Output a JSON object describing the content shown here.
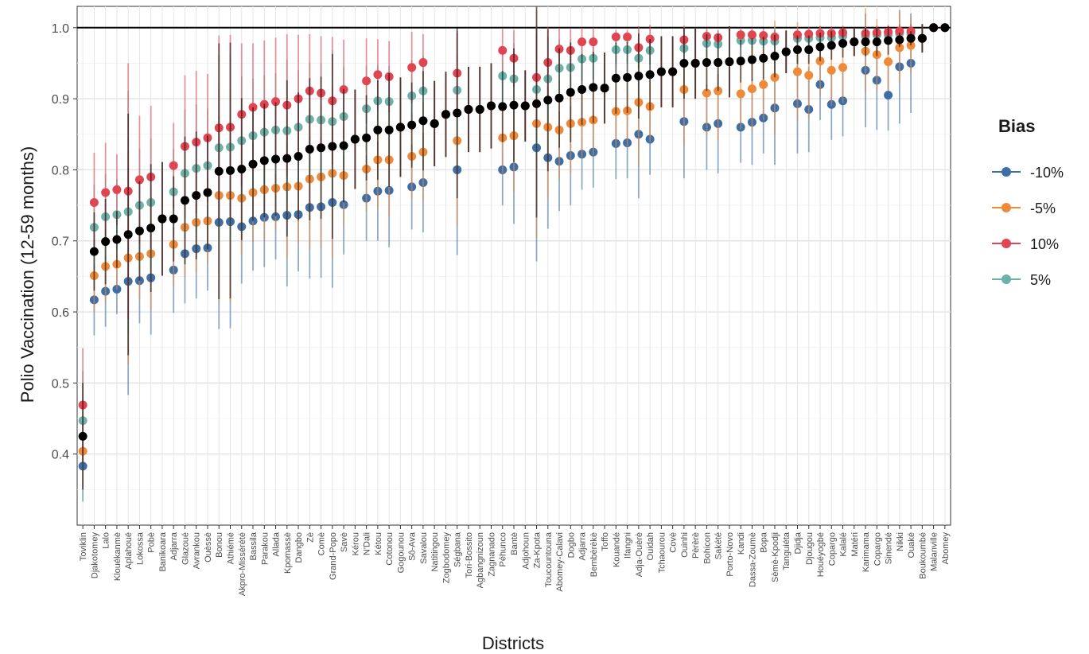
{
  "chart_data": {
    "type": "scatter",
    "xlabel": "Districts",
    "ylabel": "Polio Vaccination (12-59 months)",
    "ylim": [
      0.3,
      1.03
    ],
    "yticks": [
      "0.4",
      "0.5",
      "0.6",
      "0.7",
      "0.8",
      "0.9",
      "1.0"
    ],
    "reference_line": 1.0,
    "grid": true,
    "legend": {
      "title": "Bias",
      "position": "right",
      "entries": [
        {
          "label": "-10%",
          "color": "#3d6ea8"
        },
        {
          "label": "-5%",
          "color": "#ef8a3a"
        },
        {
          "label": "10%",
          "color": "#e04552"
        },
        {
          "label": "5%",
          "color": "#6bb3a8"
        }
      ]
    },
    "baseline_color": "#000000",
    "categories": [
      "Toviklin",
      "Djakotomey",
      "Lalo",
      "Klouékanmè",
      "Aplahoué",
      "Lokossa",
      "Pobè",
      "Banikoara",
      "Adjarra",
      "Glazoué",
      "Avrankou",
      "Ouèssè",
      "Bonou",
      "Athiémé",
      "Akpro-Missérété",
      "Bassila",
      "Parakou",
      "Allada",
      "Kpomassè",
      "Dangbo",
      "Zè",
      "Comè",
      "Grand-Popo",
      "Savè",
      "Kérou",
      "N'Dali",
      "Kétou",
      "Cotonou",
      "Gogounou",
      "Sô-Ava",
      "Savalou",
      "Natitingou",
      "Zogbodomey",
      "Ségbana",
      "Tori-Bossito",
      "Agbangnizoun",
      "Zagnanado",
      "Péhunco",
      "Bantè",
      "Adjohoun",
      "Za-Kpota",
      "Toucountouna",
      "Abomey-Calavi",
      "Dogbo",
      "Adjarra",
      "Bembèrèkè",
      "Toffo",
      "Kouandé",
      "Ifangni",
      "Adja-Ouèrè",
      "Ouidah",
      "Tchaourou",
      "Covè",
      "Ouinhi",
      "Pèrèrè",
      "Bohicon",
      "Sakété",
      "Porto-Novo",
      "Kandi",
      "Dassa-Zoumè",
      "Bopa",
      "Sèmè-Kpodji",
      "Tanguiéta",
      "Djidja",
      "Djougou",
      "Houéyogbé",
      "Copargo",
      "Kalalé",
      "Matéri",
      "Karimama",
      "Copargo",
      "Sinendé",
      "Nikki",
      "Ouaké",
      "Boukoumbé",
      "Malanville",
      "Abomey"
    ],
    "series": [
      {
        "name": "-10%",
        "values": [
          0.383,
          0.617,
          0.629,
          0.632,
          0.643,
          0.644,
          0.648,
          0.731,
          0.659,
          0.682,
          0.689,
          0.69,
          0.726,
          0.727,
          0.72,
          0.728,
          0.733,
          0.734,
          0.736,
          0.737,
          0.747,
          0.748,
          0.754,
          0.751,
          0.843,
          0.76,
          0.77,
          0.771,
          0.86,
          0.776,
          0.782,
          0.865,
          0.878,
          0.8,
          0.885,
          0.885,
          0.89,
          0.8,
          0.804,
          0.89,
          0.831,
          0.817,
          0.812,
          0.82,
          0.822,
          0.825,
          0.915,
          0.837,
          0.838,
          0.85,
          0.843,
          0.938,
          0.938,
          0.868,
          0.95,
          0.86,
          0.865,
          0.952,
          0.86,
          0.867,
          0.873,
          0.887,
          0.966,
          0.893,
          0.885,
          0.92,
          0.892,
          0.897,
          0.98,
          0.94,
          0.926,
          0.905,
          0.945,
          0.95,
          0.985,
          1.0,
          1.0
        ],
        "err": [
          0.05,
          0.05,
          0.05,
          0.035,
          0.16,
          0.06,
          0.08,
          0.08,
          0.06,
          0.07,
          0.07,
          0.06,
          0.15,
          0.15,
          0.08,
          0.07,
          0.07,
          0.06,
          0.1,
          0.08,
          0.1,
          0.1,
          0.12,
          0.07,
          0.07,
          0.06,
          0.07,
          0.08,
          0.07,
          0.06,
          0.07,
          0.06,
          0.06,
          0.12,
          0.06,
          0.06,
          0.06,
          0.05,
          0.08,
          0.05,
          0.16,
          0.1,
          0.07,
          0.07,
          0.05,
          0.05,
          0.05,
          0.05,
          0.05,
          0.09,
          0.05,
          0.05,
          0.05,
          0.08,
          0.05,
          0.06,
          0.07,
          0.05,
          0.05,
          0.06,
          0.05,
          0.08,
          0.03,
          0.07,
          0.06,
          0.05,
          0.05,
          0.05,
          0.02,
          0.08,
          0.07,
          0.05,
          0.08,
          0.07,
          0.02,
          0.0,
          0.0
        ]
      },
      {
        "name": "-5%",
        "values": [
          0.404,
          0.651,
          0.664,
          0.667,
          0.676,
          0.678,
          0.682,
          0.731,
          0.695,
          0.719,
          0.726,
          0.728,
          0.764,
          0.764,
          0.76,
          0.768,
          0.772,
          0.774,
          0.776,
          0.777,
          0.787,
          0.79,
          0.795,
          0.792,
          0.843,
          0.801,
          0.814,
          0.814,
          0.86,
          0.819,
          0.825,
          0.865,
          0.878,
          0.841,
          0.885,
          0.885,
          0.89,
          0.845,
          0.848,
          0.89,
          0.865,
          0.86,
          0.856,
          0.865,
          0.867,
          0.87,
          0.915,
          0.882,
          0.883,
          0.895,
          0.889,
          0.938,
          0.938,
          0.913,
          0.95,
          0.908,
          0.911,
          0.952,
          0.907,
          0.914,
          0.92,
          0.93,
          0.966,
          0.938,
          0.933,
          0.953,
          0.94,
          0.944,
          0.98,
          0.967,
          0.962,
          0.952,
          0.972,
          0.975,
          0.985,
          1.0,
          1.0
        ],
        "err": [
          0.05,
          0.05,
          0.05,
          0.035,
          0.15,
          0.06,
          0.08,
          0.08,
          0.06,
          0.07,
          0.07,
          0.06,
          0.15,
          0.15,
          0.08,
          0.07,
          0.07,
          0.06,
          0.1,
          0.08,
          0.1,
          0.1,
          0.12,
          0.07,
          0.07,
          0.06,
          0.07,
          0.08,
          0.07,
          0.06,
          0.07,
          0.06,
          0.06,
          0.12,
          0.06,
          0.06,
          0.06,
          0.05,
          0.08,
          0.05,
          0.16,
          0.1,
          0.07,
          0.07,
          0.05,
          0.05,
          0.05,
          0.05,
          0.05,
          0.09,
          0.05,
          0.05,
          0.05,
          0.08,
          0.05,
          0.06,
          0.07,
          0.05,
          0.05,
          0.06,
          0.05,
          0.08,
          0.03,
          0.07,
          0.06,
          0.05,
          0.05,
          0.05,
          0.02,
          0.06,
          0.05,
          0.04,
          0.05,
          0.04,
          0.02,
          0.0,
          0.0
        ]
      },
      {
        "name": "10%",
        "values": [
          0.469,
          0.754,
          0.768,
          0.772,
          0.77,
          0.786,
          0.79,
          0.731,
          0.806,
          0.833,
          0.839,
          0.845,
          0.859,
          0.86,
          0.878,
          0.888,
          0.892,
          0.896,
          0.891,
          0.9,
          0.911,
          0.908,
          0.897,
          0.913,
          0.843,
          0.925,
          0.934,
          0.931,
          0.86,
          0.944,
          0.951,
          0.865,
          0.878,
          0.936,
          0.885,
          0.885,
          0.89,
          0.968,
          0.957,
          0.89,
          0.93,
          0.951,
          0.97,
          0.968,
          0.98,
          0.98,
          0.915,
          0.987,
          0.987,
          0.972,
          0.984,
          0.938,
          0.938,
          0.983,
          0.95,
          0.988,
          0.986,
          0.952,
          0.99,
          0.99,
          0.989,
          0.987,
          0.966,
          0.99,
          0.991,
          0.992,
          0.992,
          0.993,
          0.98,
          0.992,
          0.993,
          0.994,
          0.995,
          0.995,
          0.985,
          1.0,
          1.0
        ],
        "err": [
          0.08,
          0.07,
          0.07,
          0.05,
          0.18,
          0.09,
          0.1,
          0.08,
          0.06,
          0.1,
          0.1,
          0.09,
          0.13,
          0.13,
          0.1,
          0.09,
          0.09,
          0.09,
          0.1,
          0.09,
          0.08,
          0.08,
          0.09,
          0.07,
          0.07,
          0.06,
          0.05,
          0.05,
          0.07,
          0.05,
          0.04,
          0.06,
          0.06,
          0.06,
          0.06,
          0.06,
          0.06,
          0.03,
          0.04,
          0.05,
          0.07,
          0.05,
          0.03,
          0.03,
          0.02,
          0.02,
          0.05,
          0.01,
          0.01,
          0.03,
          0.02,
          0.05,
          0.05,
          0.02,
          0.05,
          0.01,
          0.01,
          0.05,
          0.01,
          0.01,
          0.01,
          0.01,
          0.03,
          0.01,
          0.01,
          0.01,
          0.01,
          0.01,
          0.02,
          0.01,
          0.01,
          0.01,
          0.01,
          0.01,
          0.02,
          0.0,
          0.0
        ]
      },
      {
        "name": "5%",
        "values": [
          0.447,
          0.719,
          0.734,
          0.737,
          0.741,
          0.75,
          0.754,
          0.731,
          0.769,
          0.795,
          0.802,
          0.806,
          0.831,
          0.832,
          0.841,
          0.848,
          0.853,
          0.856,
          0.855,
          0.86,
          0.871,
          0.87,
          0.868,
          0.875,
          0.843,
          0.886,
          0.897,
          0.896,
          0.86,
          0.904,
          0.911,
          0.865,
          0.878,
          0.912,
          0.885,
          0.885,
          0.89,
          0.932,
          0.928,
          0.89,
          0.913,
          0.928,
          0.943,
          0.944,
          0.956,
          0.957,
          0.915,
          0.969,
          0.969,
          0.957,
          0.968,
          0.938,
          0.938,
          0.971,
          0.95,
          0.978,
          0.977,
          0.952,
          0.982,
          0.982,
          0.981,
          0.981,
          0.966,
          0.985,
          0.985,
          0.986,
          0.986,
          0.988,
          0.98,
          0.988,
          0.99,
          0.99,
          0.992,
          0.992,
          0.985,
          1.0,
          1.0
        ],
        "err": [
          0.07,
          0.06,
          0.06,
          0.05,
          0.17,
          0.08,
          0.09,
          0.08,
          0.06,
          0.09,
          0.09,
          0.08,
          0.13,
          0.13,
          0.09,
          0.08,
          0.08,
          0.08,
          0.1,
          0.08,
          0.08,
          0.08,
          0.1,
          0.07,
          0.07,
          0.06,
          0.05,
          0.05,
          0.07,
          0.05,
          0.05,
          0.06,
          0.06,
          0.08,
          0.06,
          0.06,
          0.06,
          0.04,
          0.05,
          0.05,
          0.09,
          0.06,
          0.04,
          0.04,
          0.03,
          0.03,
          0.05,
          0.02,
          0.02,
          0.04,
          0.02,
          0.05,
          0.05,
          0.03,
          0.05,
          0.02,
          0.02,
          0.05,
          0.01,
          0.01,
          0.01,
          0.02,
          0.03,
          0.01,
          0.01,
          0.01,
          0.01,
          0.01,
          0.02,
          0.01,
          0.01,
          0.01,
          0.01,
          0.01,
          0.02,
          0.0,
          0.0
        ]
      },
      {
        "name": "",
        "values": [
          0.425,
          0.685,
          0.699,
          0.702,
          0.709,
          0.714,
          0.718,
          0.731,
          0.731,
          0.757,
          0.764,
          0.768,
          0.798,
          0.799,
          0.801,
          0.808,
          0.813,
          0.815,
          0.816,
          0.819,
          0.829,
          0.831,
          0.833,
          0.834,
          0.843,
          0.845,
          0.856,
          0.856,
          0.86,
          0.863,
          0.869,
          0.865,
          0.878,
          0.88,
          0.885,
          0.885,
          0.89,
          0.889,
          0.891,
          0.89,
          0.893,
          0.898,
          0.901,
          0.909,
          0.913,
          0.916,
          0.915,
          0.929,
          0.93,
          0.932,
          0.934,
          0.938,
          0.938,
          0.95,
          0.95,
          0.951,
          0.951,
          0.952,
          0.953,
          0.955,
          0.957,
          0.96,
          0.966,
          0.969,
          0.969,
          0.973,
          0.975,
          0.978,
          0.98,
          0.98,
          0.98,
          0.982,
          0.983,
          0.985,
          0.985,
          1.0,
          1.0
        ],
        "err": [
          0.075,
          0.055,
          0.06,
          0.04,
          0.17,
          0.07,
          0.09,
          0.08,
          0.06,
          0.09,
          0.09,
          0.08,
          0.18,
          0.18,
          0.1,
          0.08,
          0.08,
          0.08,
          0.11,
          0.09,
          0.1,
          0.1,
          0.13,
          0.08,
          0.07,
          0.06,
          0.07,
          0.08,
          0.07,
          0.06,
          0.07,
          0.06,
          0.06,
          0.12,
          0.06,
          0.06,
          0.06,
          0.05,
          0.08,
          0.05,
          0.16,
          0.1,
          0.07,
          0.07,
          0.05,
          0.05,
          0.05,
          0.05,
          0.05,
          0.06,
          0.05,
          0.05,
          0.05,
          0.05,
          0.05,
          0.04,
          0.04,
          0.05,
          0.03,
          0.03,
          0.03,
          0.03,
          0.03,
          0.02,
          0.02,
          0.02,
          0.02,
          0.02,
          0.02,
          0.02,
          0.02,
          0.02,
          0.01,
          0.01,
          0.02,
          0.0,
          0.0
        ]
      }
    ]
  }
}
